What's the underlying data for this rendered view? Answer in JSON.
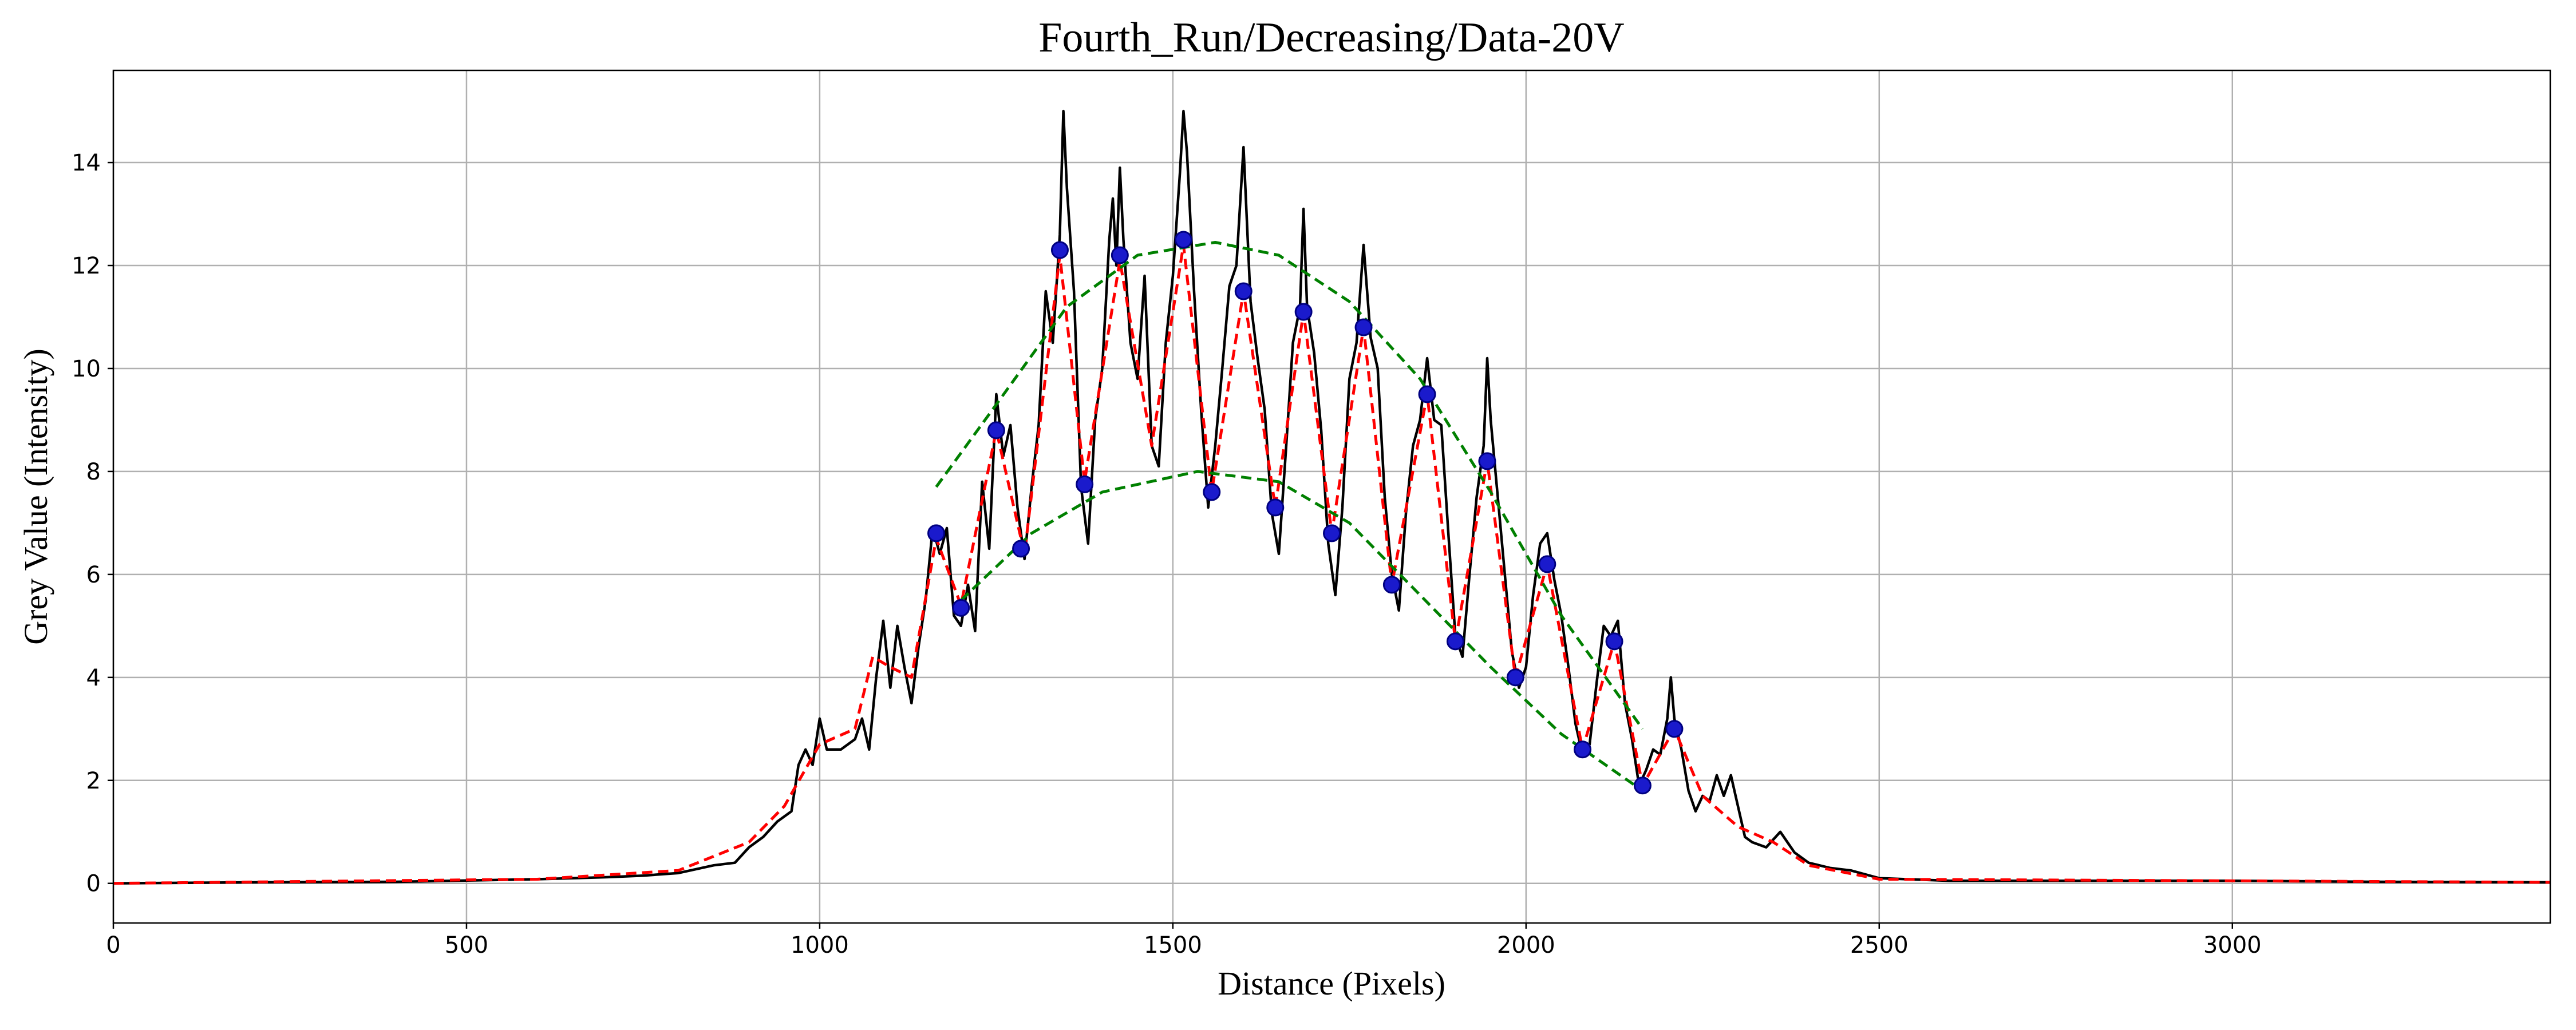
{
  "chart_data": {
    "type": "line",
    "title": "Fourth_Run/Decreasing/Data-20V",
    "x_label": "Distance (Pixels)",
    "y_label": "Grey Value (Intensity)",
    "xlim": [
      0,
      3450
    ],
    "ylim": [
      -0.77,
      15.79
    ],
    "xticks": [
      0,
      500,
      1000,
      1500,
      2000,
      2500,
      3000
    ],
    "yticks": [
      0,
      2,
      4,
      6,
      8,
      10,
      12,
      14
    ],
    "grid": true,
    "series": [
      {
        "color": "#000000",
        "dash": false,
        "markers": false,
        "x": [
          0,
          200,
          400,
          600,
          700,
          750,
          800,
          850,
          880,
          900,
          920,
          940,
          960,
          970,
          980,
          990,
          1000,
          1010,
          1030,
          1050,
          1060,
          1070,
          1080,
          1090,
          1100,
          1110,
          1120,
          1130,
          1140,
          1150,
          1160,
          1170,
          1180,
          1190,
          1200,
          1210,
          1220,
          1230,
          1240,
          1250,
          1260,
          1270,
          1280,
          1290,
          1300,
          1310,
          1320,
          1330,
          1340,
          1345,
          1350,
          1360,
          1370,
          1380,
          1390,
          1400,
          1410,
          1415,
          1420,
          1425,
          1430,
          1440,
          1450,
          1460,
          1470,
          1480,
          1490,
          1500,
          1510,
          1515,
          1520,
          1530,
          1540,
          1550,
          1560,
          1570,
          1580,
          1590,
          1600,
          1610,
          1620,
          1630,
          1640,
          1650,
          1660,
          1670,
          1680,
          1685,
          1690,
          1700,
          1710,
          1720,
          1730,
          1740,
          1750,
          1760,
          1770,
          1780,
          1790,
          1800,
          1810,
          1820,
          1830,
          1840,
          1850,
          1860,
          1870,
          1880,
          1890,
          1900,
          1910,
          1920,
          1930,
          1940,
          1945,
          1950,
          1960,
          1970,
          1980,
          1990,
          2000,
          2010,
          2020,
          2030,
          2040,
          2050,
          2060,
          2070,
          2080,
          2090,
          2100,
          2110,
          2120,
          2130,
          2140,
          2150,
          2160,
          2170,
          2180,
          2190,
          2200,
          2205,
          2210,
          2220,
          2230,
          2240,
          2250,
          2260,
          2270,
          2280,
          2290,
          2300,
          2310,
          2320,
          2340,
          2360,
          2380,
          2400,
          2430,
          2460,
          2500,
          2600,
          2800,
          3000,
          3200,
          3450
        ],
        "values": [
          0,
          0.02,
          0.03,
          0.08,
          0.12,
          0.15,
          0.2,
          0.35,
          0.4,
          0.7,
          0.9,
          1.2,
          1.4,
          2.3,
          2.6,
          2.3,
          3.2,
          2.6,
          2.6,
          2.8,
          3.2,
          2.6,
          4.0,
          5.1,
          3.8,
          5.0,
          4.2,
          3.5,
          4.6,
          5.5,
          6.9,
          6.4,
          6.9,
          5.2,
          5.0,
          5.8,
          4.9,
          7.8,
          6.5,
          9.5,
          8.3,
          8.9,
          7.3,
          6.3,
          7.7,
          8.9,
          11.5,
          10.5,
          12.6,
          15.0,
          13.5,
          11.5,
          7.7,
          6.6,
          9.0,
          10.0,
          12.5,
          13.3,
          12.0,
          13.9,
          12.5,
          10.5,
          9.8,
          11.8,
          8.5,
          8.1,
          10.5,
          11.8,
          13.8,
          15.0,
          14.2,
          11.5,
          9.2,
          7.3,
          8.5,
          10.0,
          11.6,
          12.0,
          14.3,
          11.3,
          10.2,
          9.2,
          7.2,
          6.4,
          8.4,
          10.5,
          11.2,
          13.1,
          11.2,
          10.3,
          8.8,
          6.6,
          5.6,
          7.3,
          9.8,
          10.5,
          12.4,
          10.6,
          10.0,
          7.5,
          6.0,
          5.3,
          7.2,
          8.5,
          9.0,
          10.2,
          9.0,
          8.9,
          6.8,
          4.8,
          4.4,
          6.0,
          7.5,
          8.5,
          10.2,
          9.0,
          7.5,
          6.0,
          4.5,
          3.8,
          4.2,
          5.6,
          6.6,
          6.8,
          5.9,
          5.2,
          4.2,
          3.1,
          2.5,
          2.7,
          3.9,
          5.0,
          4.8,
          5.1,
          3.5,
          2.8,
          1.9,
          2.2,
          2.6,
          2.5,
          3.2,
          4.0,
          3.2,
          2.6,
          1.8,
          1.4,
          1.7,
          1.6,
          2.1,
          1.7,
          2.1,
          1.5,
          0.9,
          0.8,
          0.7,
          1.0,
          0.6,
          0.4,
          0.3,
          0.25,
          0.1,
          0.05,
          0.05,
          0.05,
          0.03,
          0.02
        ]
      },
      {
        "color": "#ff0000",
        "dash": true,
        "markers": false,
        "x": [
          0,
          600,
          800,
          900,
          950,
          1000,
          1050,
          1075,
          1100,
          1130,
          1165,
          1200,
          1250,
          1290,
          1340,
          1375,
          1425,
          1470,
          1515,
          1555,
          1600,
          1645,
          1685,
          1725,
          1770,
          1810,
          1860,
          1900,
          1945,
          1985,
          2030,
          2080,
          2125,
          2165,
          2210,
          2250,
          2300,
          2350,
          2400,
          2500,
          3450
        ],
        "values": [
          0,
          0.08,
          0.25,
          0.8,
          1.5,
          2.7,
          3.0,
          4.4,
          4.2,
          4.0,
          6.7,
          5.4,
          8.8,
          6.4,
          12.2,
          7.8,
          12.1,
          8.5,
          12.4,
          7.6,
          11.5,
          7.3,
          11.1,
          6.8,
          10.8,
          5.8,
          9.5,
          4.7,
          8.2,
          4.0,
          6.2,
          2.6,
          4.7,
          1.9,
          3.0,
          1.7,
          1.1,
          0.8,
          0.35,
          0.08,
          0.02
        ]
      },
      {
        "color": "#008000",
        "dash": true,
        "markers": false,
        "x": [
          1165,
          1250,
          1350,
          1450,
          1560,
          1650,
          1750,
          1850,
          1950,
          2050,
          2165
        ],
        "values": [
          7.7,
          9.3,
          11.2,
          12.2,
          12.45,
          12.2,
          11.3,
          9.8,
          7.6,
          5.2,
          3.0
        ]
      },
      {
        "color": "#008000",
        "dash": true,
        "markers": false,
        "x": [
          1200,
          1300,
          1400,
          1535,
          1650,
          1750,
          1850,
          1950,
          2050,
          2165
        ],
        "values": [
          5.5,
          6.8,
          7.6,
          8.0,
          7.8,
          7.0,
          5.6,
          4.2,
          2.9,
          1.8
        ]
      },
      {
        "color": "#1a1acc",
        "dash": false,
        "markers": true,
        "x": [
          1165,
          1200,
          1250,
          1285,
          1340,
          1375,
          1425,
          1515,
          1555,
          1600,
          1645,
          1685,
          1725,
          1770,
          1810,
          1860,
          1900,
          1945,
          1985,
          2030,
          2080,
          2125,
          2165,
          2210
        ],
        "values": [
          6.8,
          5.35,
          8.8,
          6.5,
          12.3,
          7.75,
          12.2,
          12.5,
          7.6,
          11.5,
          7.3,
          11.1,
          6.8,
          10.8,
          5.8,
          9.5,
          4.7,
          8.2,
          4.0,
          6.2,
          2.6,
          4.7,
          1.9,
          3.0
        ]
      }
    ]
  }
}
